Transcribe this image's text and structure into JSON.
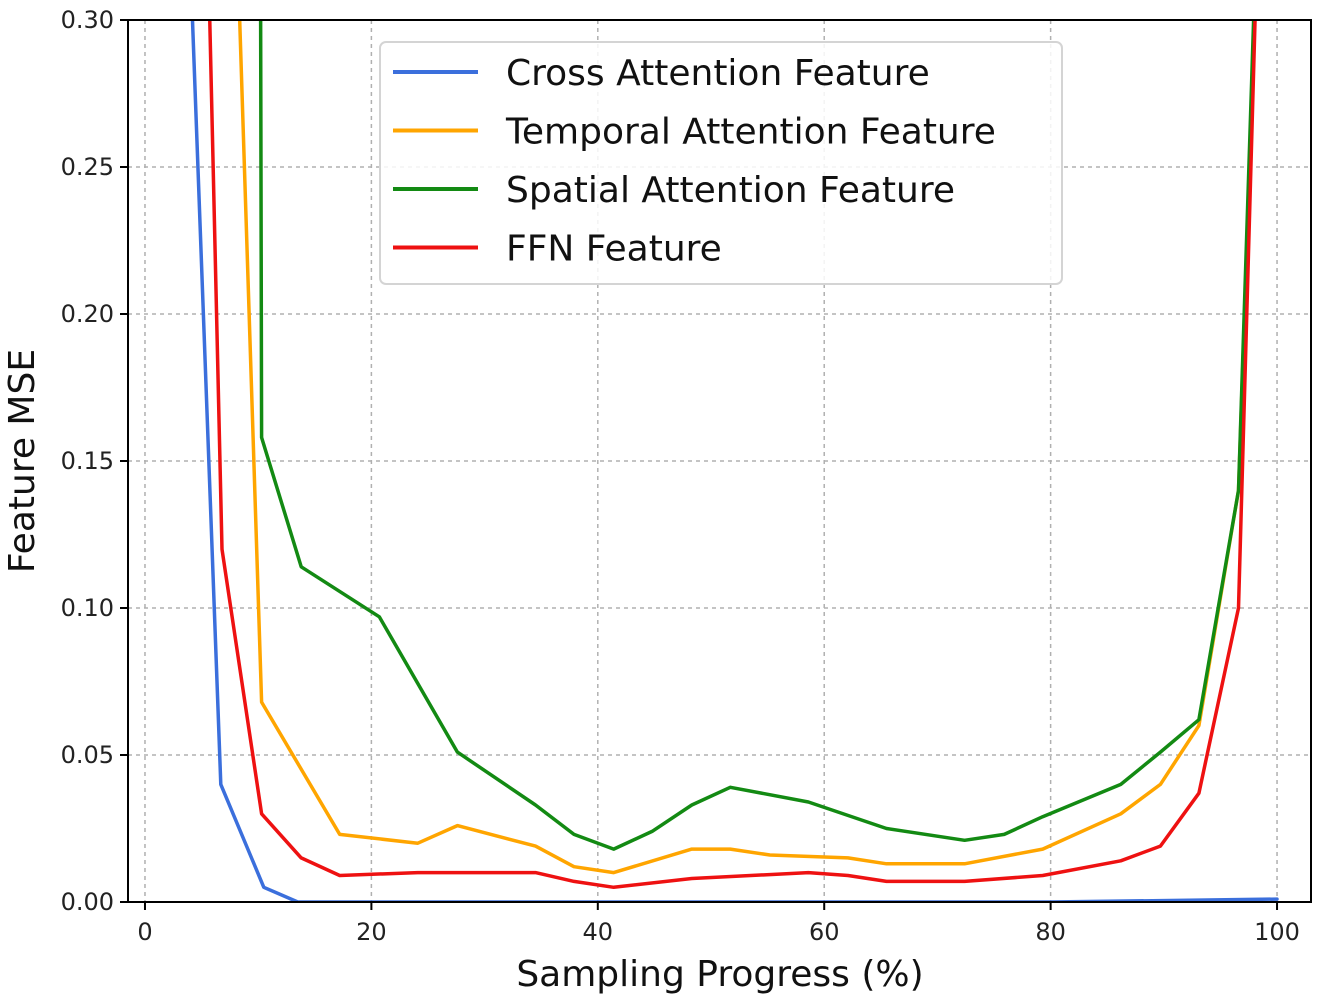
{
  "chart_data": {
    "type": "line",
    "title": "",
    "xlabel": "Sampling Progress (%)",
    "ylabel": "Feature MSE",
    "xlim": [
      -1.5,
      103
    ],
    "ylim": [
      0,
      0.3
    ],
    "xticks": [
      0,
      20,
      40,
      60,
      80,
      100
    ],
    "yticks": [
      0.0,
      0.05,
      0.1,
      0.15,
      0.2,
      0.25,
      0.3
    ],
    "xtick_labels": [
      "0",
      "20",
      "40",
      "60",
      "80",
      "100"
    ],
    "ytick_labels": [
      "0.00",
      "0.05",
      "0.10",
      "0.15",
      "0.20",
      "0.25",
      "0.30"
    ],
    "grid": true,
    "legend_position": "top-center",
    "series": [
      {
        "name": "Cross Attention Feature",
        "color": "#3b6fdc",
        "points": [
          [
            4,
            0.32
          ],
          [
            6.7,
            0.04
          ],
          [
            10.5,
            0.005
          ],
          [
            13.5,
            0.0
          ],
          [
            20,
            0.0
          ],
          [
            40,
            0.0
          ],
          [
            60,
            0.0
          ],
          [
            80,
            0.0
          ],
          [
            100,
            0.001
          ]
        ]
      },
      {
        "name": "Temporal Attention Feature",
        "color": "#ffa500",
        "points": [
          [
            8.2,
            0.32
          ],
          [
            10.3,
            0.068
          ],
          [
            17.2,
            0.023
          ],
          [
            24.1,
            0.02
          ],
          [
            27.6,
            0.026
          ],
          [
            34.5,
            0.019
          ],
          [
            37.9,
            0.012
          ],
          [
            41.4,
            0.01
          ],
          [
            48.3,
            0.018
          ],
          [
            51.7,
            0.018
          ],
          [
            55.2,
            0.016
          ],
          [
            62.1,
            0.015
          ],
          [
            65.5,
            0.013
          ],
          [
            72.4,
            0.013
          ],
          [
            79.3,
            0.018
          ],
          [
            86.2,
            0.03
          ],
          [
            89.7,
            0.04
          ],
          [
            93.1,
            0.06
          ],
          [
            96.6,
            0.14
          ],
          [
            98.2,
            0.32
          ]
        ]
      },
      {
        "name": "Spatial Attention Feature",
        "color": "#138a13",
        "points": [
          [
            10.2,
            0.32
          ],
          [
            10.3,
            0.158
          ],
          [
            13.8,
            0.114
          ],
          [
            20.7,
            0.097
          ],
          [
            27.6,
            0.051
          ],
          [
            34.5,
            0.033
          ],
          [
            37.9,
            0.023
          ],
          [
            41.4,
            0.018
          ],
          [
            44.8,
            0.024
          ],
          [
            48.3,
            0.033
          ],
          [
            51.7,
            0.039
          ],
          [
            58.6,
            0.034
          ],
          [
            65.5,
            0.025
          ],
          [
            72.4,
            0.021
          ],
          [
            75.9,
            0.023
          ],
          [
            79.3,
            0.029
          ],
          [
            86.2,
            0.04
          ],
          [
            89.7,
            0.051
          ],
          [
            93.1,
            0.062
          ],
          [
            96.6,
            0.14
          ],
          [
            98.1,
            0.32
          ]
        ]
      },
      {
        "name": "FFN Feature",
        "color": "#ee1111",
        "points": [
          [
            5.6,
            0.32
          ],
          [
            6.8,
            0.12
          ],
          [
            10.3,
            0.03
          ],
          [
            13.8,
            0.015
          ],
          [
            17.2,
            0.009
          ],
          [
            24.1,
            0.01
          ],
          [
            34.5,
            0.01
          ],
          [
            37.9,
            0.007
          ],
          [
            41.4,
            0.005
          ],
          [
            48.3,
            0.008
          ],
          [
            58.6,
            0.01
          ],
          [
            62.1,
            0.009
          ],
          [
            65.5,
            0.007
          ],
          [
            72.4,
            0.007
          ],
          [
            79.3,
            0.009
          ],
          [
            86.2,
            0.014
          ],
          [
            89.7,
            0.019
          ],
          [
            93.1,
            0.037
          ],
          [
            96.6,
            0.1
          ],
          [
            98.2,
            0.32
          ]
        ]
      }
    ]
  }
}
